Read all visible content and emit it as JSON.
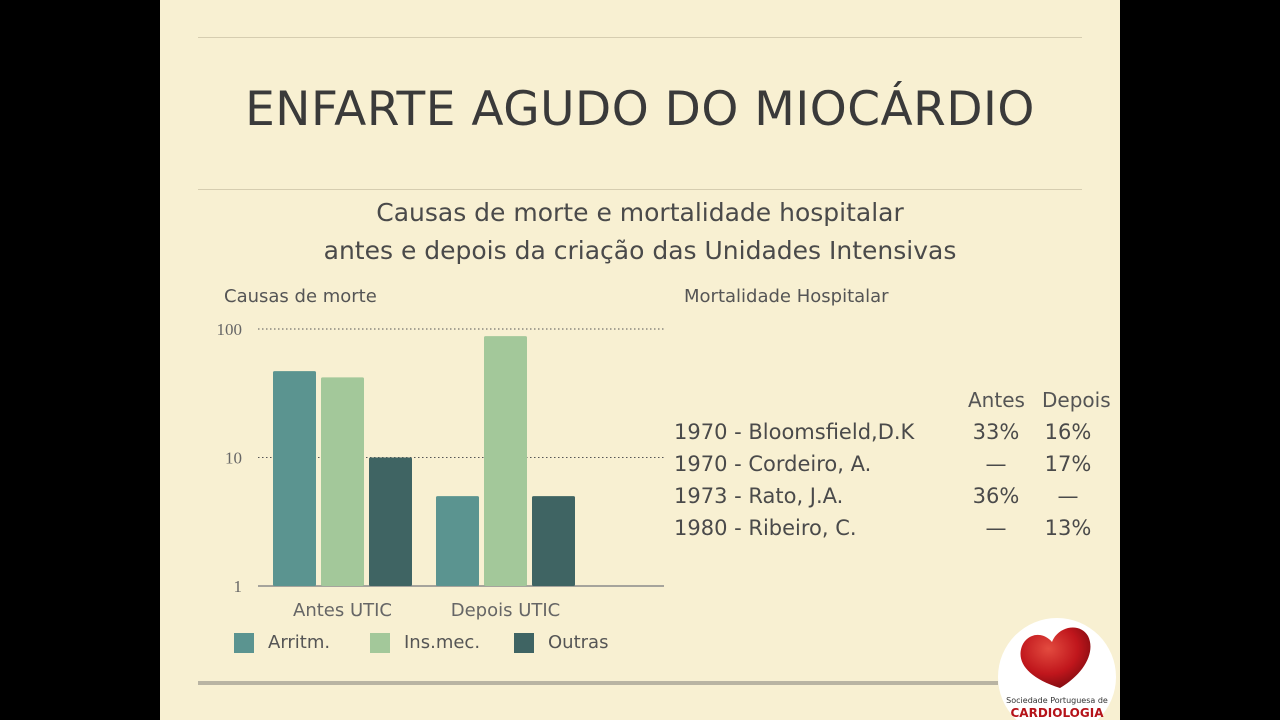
{
  "slide": {
    "title": "ENFARTE AGUDO DO MIOCÁRDIO",
    "subtitle_line1": "Causas de morte e mortalidade hospitalar",
    "subtitle_line2": "antes e depois da criação das Unidades Intensivas",
    "left_label": "Causas de morte",
    "right_label": "Mortalidade Hospitalar"
  },
  "chart_data": {
    "type": "bar",
    "ylabel": "",
    "yscale": "log",
    "ylim": [
      1,
      100
    ],
    "yticks": [
      "100",
      "10",
      "1"
    ],
    "grid": "dotted lines at 10 and 100",
    "categories": [
      "Antes UTIC",
      "Depois UTIC"
    ],
    "series": [
      {
        "name": "Arritm.",
        "color": "#5b9490",
        "values": [
          47,
          5
        ]
      },
      {
        "name": "Ins.mec.",
        "color": "#a3c89a",
        "values": [
          42,
          88
        ]
      },
      {
        "name": "Outras",
        "color": "#3f6463",
        "values": [
          10,
          5
        ]
      }
    ],
    "legend": "bottom"
  },
  "mortality": {
    "header_antes": "Antes",
    "header_depois": "Depois",
    "rows": [
      {
        "label": "1970 - Bloomsfield,D.K",
        "antes": "33%",
        "depois": "16%"
      },
      {
        "label": "1970 - Cordeiro, A.",
        "antes": "—",
        "depois": "17%"
      },
      {
        "label": "1973 - Rato, J.A.",
        "antes": "36%",
        "depois": "—"
      },
      {
        "label": "1980 - Ribeiro, C.",
        "antes": "—",
        "depois": "13%"
      }
    ]
  },
  "logo": {
    "line1": "Sociedade Portuguesa de",
    "line2": "CARDIOLOGIA"
  }
}
